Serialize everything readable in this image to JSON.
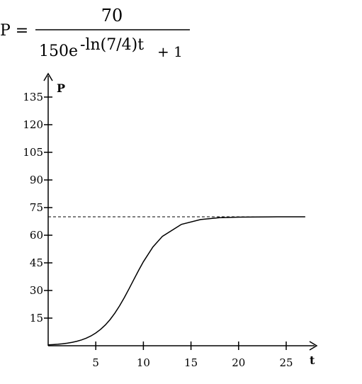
{
  "formula": {
    "lhs": "P =",
    "numerator": "70",
    "denominator_base": "150e",
    "exponent": "-ln(7/4)t",
    "denominator_tail": "+ 1"
  },
  "chart_data": {
    "type": "line",
    "title": "",
    "xlabel": "t",
    "ylabel": "P",
    "xlim": [
      0,
      27
    ],
    "ylim": [
      0,
      135
    ],
    "x_ticks": [
      5,
      10,
      15,
      20,
      25
    ],
    "y_ticks": [
      15,
      30,
      45,
      60,
      75,
      90,
      105,
      120,
      135
    ],
    "grid": false,
    "series": [
      {
        "x": [
          0,
          0.5,
          1,
          1.5,
          2,
          2.5,
          3,
          3.5,
          4,
          4.5,
          5,
          5.5,
          6,
          6.5,
          7,
          7.5,
          8,
          8.5,
          9,
          9.5,
          10,
          11,
          12,
          14,
          16,
          18,
          20,
          22,
          24,
          26,
          27
        ],
        "y": [
          0.46,
          0.61,
          0.8,
          1.05,
          1.39,
          1.83,
          2.41,
          3.15,
          4.12,
          5.35,
          6.91,
          8.86,
          11.27,
          14.19,
          17.66,
          21.67,
          26.16,
          30.99,
          35.98,
          40.92,
          45.6,
          53.6,
          59.4,
          65.9,
          68.5,
          69.5,
          69.8,
          69.9,
          70,
          70,
          70
        ]
      }
    ],
    "asymptote": {
      "y": 70,
      "style": "dashed"
    }
  }
}
